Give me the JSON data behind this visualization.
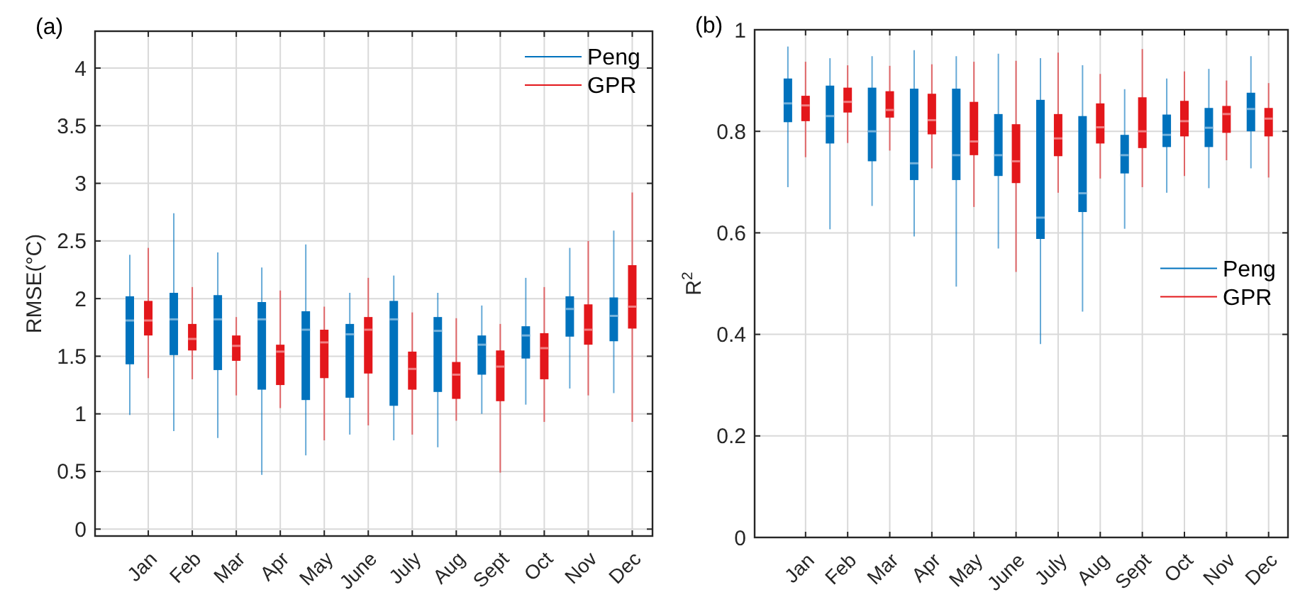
{
  "chart_data": [
    {
      "type": "box",
      "title": "(a)",
      "ylabel": "RMSE(°C)",
      "categories": [
        "Jan",
        "Feb",
        "Mar",
        "Apr",
        "May",
        "June",
        "July",
        "Aug",
        "Sept",
        "Oct",
        "Nov",
        "Dec"
      ],
      "ylim": [
        -0.06,
        4.32
      ],
      "yticks": [
        0,
        0.5,
        1,
        1.5,
        2,
        2.5,
        3,
        3.5,
        4
      ],
      "grid": true,
      "legend": "top right",
      "series": [
        {
          "name": "Peng",
          "color": "#0072bd",
          "boxes": [
            {
              "low": 0.99,
              "q1": 1.43,
              "median": 1.81,
              "q3": 2.02,
              "high": 2.38
            },
            {
              "low": 0.85,
              "q1": 1.51,
              "median": 1.82,
              "q3": 2.05,
              "high": 2.74
            },
            {
              "low": 0.79,
              "q1": 1.38,
              "median": 1.82,
              "q3": 2.03,
              "high": 2.4
            },
            {
              "low": 0.47,
              "q1": 1.21,
              "median": 1.82,
              "q3": 1.97,
              "high": 2.27
            },
            {
              "low": 0.64,
              "q1": 1.12,
              "median": 1.73,
              "q3": 1.89,
              "high": 2.47
            },
            {
              "low": 0.82,
              "q1": 1.14,
              "median": 1.69,
              "q3": 1.78,
              "high": 2.05
            },
            {
              "low": 0.77,
              "q1": 1.07,
              "median": 1.82,
              "q3": 1.98,
              "high": 2.2
            },
            {
              "low": 0.71,
              "q1": 1.19,
              "median": 1.72,
              "q3": 1.84,
              "high": 2.05
            },
            {
              "low": 1.0,
              "q1": 1.34,
              "median": 1.6,
              "q3": 1.68,
              "high": 1.94
            },
            {
              "low": 1.08,
              "q1": 1.48,
              "median": 1.68,
              "q3": 1.76,
              "high": 2.18
            },
            {
              "low": 1.22,
              "q1": 1.67,
              "median": 1.91,
              "q3": 2.02,
              "high": 2.44
            },
            {
              "low": 1.18,
              "q1": 1.63,
              "median": 1.85,
              "q3": 2.01,
              "high": 2.59
            }
          ]
        },
        {
          "name": "GPR",
          "color": "#e3171b",
          "boxes": [
            {
              "low": 1.31,
              "q1": 1.68,
              "median": 1.81,
              "q3": 1.98,
              "high": 2.44
            },
            {
              "low": 1.3,
              "q1": 1.55,
              "median": 1.65,
              "q3": 1.78,
              "high": 2.1
            },
            {
              "low": 1.16,
              "q1": 1.46,
              "median": 1.59,
              "q3": 1.68,
              "high": 1.84
            },
            {
              "low": 1.05,
              "q1": 1.25,
              "median": 1.54,
              "q3": 1.6,
              "high": 2.07
            },
            {
              "low": 0.77,
              "q1": 1.31,
              "median": 1.62,
              "q3": 1.73,
              "high": 1.93
            },
            {
              "low": 0.9,
              "q1": 1.35,
              "median": 1.73,
              "q3": 1.84,
              "high": 2.18
            },
            {
              "low": 0.82,
              "q1": 1.21,
              "median": 1.39,
              "q3": 1.54,
              "high": 1.88
            },
            {
              "low": 0.94,
              "q1": 1.13,
              "median": 1.34,
              "q3": 1.45,
              "high": 1.83
            },
            {
              "low": 0.49,
              "q1": 1.11,
              "median": 1.41,
              "q3": 1.55,
              "high": 1.78
            },
            {
              "low": 0.93,
              "q1": 1.3,
              "median": 1.57,
              "q3": 1.7,
              "high": 2.1
            },
            {
              "low": 1.16,
              "q1": 1.6,
              "median": 1.73,
              "q3": 1.95,
              "high": 2.5
            },
            {
              "low": 0.93,
              "q1": 1.74,
              "median": 1.93,
              "q3": 2.29,
              "high": 2.92
            }
          ]
        }
      ]
    },
    {
      "type": "box",
      "title": "(b)",
      "ylabel": "R$^{2}$",
      "categories": [
        "Jan",
        "Feb",
        "Mar",
        "Apr",
        "May",
        "June",
        "July",
        "Aug",
        "Sept",
        "Oct",
        "Nov",
        "Dec"
      ],
      "ylim": [
        0,
        1
      ],
      "yticks": [
        0,
        0.2,
        0.4,
        0.6,
        0.8,
        1
      ],
      "grid": true,
      "legend": "right",
      "series": [
        {
          "name": "Peng",
          "color": "#0072bd",
          "boxes": [
            {
              "low": 0.69,
              "q1": 0.818,
              "median": 0.855,
              "q3": 0.904,
              "high": 0.967
            },
            {
              "low": 0.607,
              "q1": 0.776,
              "median": 0.83,
              "q3": 0.89,
              "high": 0.944
            },
            {
              "low": 0.653,
              "q1": 0.741,
              "median": 0.8,
              "q3": 0.886,
              "high": 0.948
            },
            {
              "low": 0.593,
              "q1": 0.704,
              "median": 0.737,
              "q3": 0.884,
              "high": 0.96
            },
            {
              "low": 0.494,
              "q1": 0.704,
              "median": 0.753,
              "q3": 0.884,
              "high": 0.948
            },
            {
              "low": 0.569,
              "q1": 0.712,
              "median": 0.753,
              "q3": 0.834,
              "high": 0.953
            },
            {
              "low": 0.381,
              "q1": 0.588,
              "median": 0.63,
              "q3": 0.862,
              "high": 0.944
            },
            {
              "low": 0.445,
              "q1": 0.641,
              "median": 0.678,
              "q3": 0.83,
              "high": 0.93
            },
            {
              "low": 0.608,
              "q1": 0.717,
              "median": 0.753,
              "q3": 0.793,
              "high": 0.883
            },
            {
              "low": 0.679,
              "q1": 0.769,
              "median": 0.793,
              "q3": 0.833,
              "high": 0.904
            },
            {
              "low": 0.688,
              "q1": 0.769,
              "median": 0.807,
              "q3": 0.846,
              "high": 0.923
            },
            {
              "low": 0.727,
              "q1": 0.8,
              "median": 0.844,
              "q3": 0.876,
              "high": 0.948
            }
          ]
        },
        {
          "name": "GPR",
          "color": "#e3171b",
          "boxes": [
            {
              "low": 0.749,
              "q1": 0.82,
              "median": 0.851,
              "q3": 0.87,
              "high": 0.937
            },
            {
              "low": 0.777,
              "q1": 0.837,
              "median": 0.858,
              "q3": 0.886,
              "high": 0.93
            },
            {
              "low": 0.762,
              "q1": 0.827,
              "median": 0.842,
              "q3": 0.879,
              "high": 0.929
            },
            {
              "low": 0.727,
              "q1": 0.794,
              "median": 0.822,
              "q3": 0.874,
              "high": 0.932
            },
            {
              "low": 0.651,
              "q1": 0.753,
              "median": 0.78,
              "q3": 0.858,
              "high": 0.937
            },
            {
              "low": 0.523,
              "q1": 0.698,
              "median": 0.741,
              "q3": 0.814,
              "high": 0.939
            },
            {
              "low": 0.679,
              "q1": 0.751,
              "median": 0.786,
              "q3": 0.834,
              "high": 0.955
            },
            {
              "low": 0.707,
              "q1": 0.776,
              "median": 0.808,
              "q3": 0.855,
              "high": 0.913
            },
            {
              "low": 0.69,
              "q1": 0.767,
              "median": 0.8,
              "q3": 0.867,
              "high": 0.962
            },
            {
              "low": 0.712,
              "q1": 0.79,
              "median": 0.82,
              "q3": 0.86,
              "high": 0.918
            },
            {
              "low": 0.743,
              "q1": 0.797,
              "median": 0.834,
              "q3": 0.85,
              "high": 0.9
            },
            {
              "low": 0.709,
              "q1": 0.79,
              "median": 0.825,
              "q3": 0.846,
              "high": 0.895
            }
          ]
        }
      ]
    }
  ]
}
